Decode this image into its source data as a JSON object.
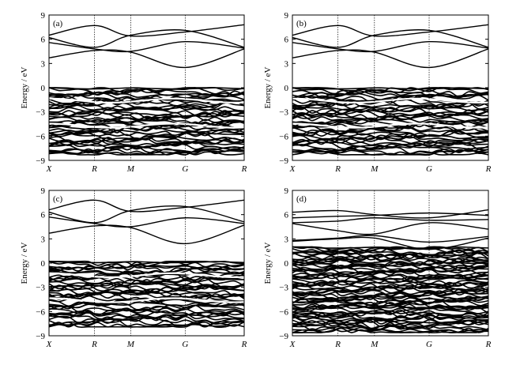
{
  "chart_data": [
    {
      "type": "line",
      "panel": "(a)",
      "ylabel": "Energy / eV",
      "ylim": [
        -9,
        9
      ],
      "yticks": [
        {
          "value": 9,
          "label": "9"
        },
        {
          "value": 6,
          "label": "6"
        },
        {
          "value": 3,
          "label": "3"
        },
        {
          "value": 0,
          "label": "0"
        },
        {
          "value": -3,
          "label": "−3"
        },
        {
          "value": -6,
          "label": "−6"
        },
        {
          "value": -9,
          "label": "−9"
        }
      ],
      "kpoints": [
        {
          "label": "X",
          "pos": 0
        },
        {
          "label": "R",
          "pos": 1
        },
        {
          "label": "M",
          "pos": 1.8
        },
        {
          "label": "G",
          "pos": 3
        },
        {
          "label": "R",
          "pos": 4.3
        }
      ],
      "conduction_bands": [
        [
          6.5,
          7.7,
          6.4,
          6.9,
          7.8
        ],
        [
          6.2,
          5.0,
          6.5,
          7.1,
          5.0
        ],
        [
          5.6,
          4.8,
          4.5,
          5.7,
          4.9
        ],
        [
          3.7,
          4.6,
          4.4,
          2.5,
          4.8
        ]
      ],
      "valence_band_max": 0,
      "valence_band_min": -8.3,
      "valence_gaps": [
        -1.6,
        -4.7
      ]
    },
    {
      "type": "line",
      "panel": "(b)",
      "ylabel": "Energy / eV",
      "ylim": [
        -9,
        9
      ],
      "yticks": [
        {
          "value": 9,
          "label": "9"
        },
        {
          "value": 6,
          "label": "6"
        },
        {
          "value": 3,
          "label": "3"
        },
        {
          "value": 0,
          "label": "0"
        },
        {
          "value": -3,
          "label": "−3"
        },
        {
          "value": -6,
          "label": "−6"
        },
        {
          "value": -9,
          "label": "−9"
        }
      ],
      "kpoints": [
        {
          "label": "X",
          "pos": 0
        },
        {
          "label": "R",
          "pos": 1
        },
        {
          "label": "M",
          "pos": 1.8
        },
        {
          "label": "G",
          "pos": 3
        },
        {
          "label": "R",
          "pos": 4.3
        }
      ],
      "conduction_bands": [
        [
          6.5,
          7.7,
          6.4,
          6.9,
          7.8
        ],
        [
          6.2,
          5.0,
          6.5,
          7.1,
          5.0
        ],
        [
          5.6,
          4.8,
          4.5,
          5.7,
          4.9
        ],
        [
          3.7,
          4.6,
          4.4,
          2.5,
          4.8
        ]
      ],
      "valence_band_max": 0,
      "valence_band_min": -8.3,
      "valence_gaps": [
        -1.6,
        -4.7
      ]
    },
    {
      "type": "line",
      "panel": "(c)",
      "ylabel": "Energy / eV",
      "ylim": [
        -9,
        9
      ],
      "yticks": [
        {
          "value": 9,
          "label": "9"
        },
        {
          "value": 6,
          "label": "6"
        },
        {
          "value": 3,
          "label": "3"
        },
        {
          "value": 0,
          "label": "0"
        },
        {
          "value": -3,
          "label": "−3"
        },
        {
          "value": -6,
          "label": "−6"
        },
        {
          "value": -9,
          "label": "−9"
        }
      ],
      "kpoints": [
        {
          "label": "X",
          "pos": 0
        },
        {
          "label": "R",
          "pos": 1
        },
        {
          "label": "M",
          "pos": 1.8
        },
        {
          "label": "G",
          "pos": 3
        },
        {
          "label": "R",
          "pos": 4.3
        }
      ],
      "conduction_bands": [
        [
          6.6,
          7.8,
          6.4,
          6.9,
          7.8
        ],
        [
          6.3,
          5.0,
          6.5,
          7.0,
          5.1
        ],
        [
          5.7,
          4.9,
          4.5,
          5.6,
          4.9
        ],
        [
          3.7,
          4.6,
          4.4,
          2.4,
          4.7
        ]
      ],
      "valence_band_max": 0.2,
      "valence_band_min": -7.9,
      "valence_gaps": [
        -1.5,
        -4.6
      ]
    },
    {
      "type": "line",
      "panel": "(d)",
      "ylabel": "Energy / eV",
      "ylim": [
        -9,
        9
      ],
      "yticks": [
        {
          "value": 9,
          "label": "9"
        },
        {
          "value": 6,
          "label": "6"
        },
        {
          "value": 3,
          "label": "3"
        },
        {
          "value": 0,
          "label": "0"
        },
        {
          "value": -3,
          "label": "−3"
        },
        {
          "value": -6,
          "label": "−6"
        },
        {
          "value": -9,
          "label": "−9"
        }
      ],
      "kpoints": [
        {
          "label": "X",
          "pos": 0
        },
        {
          "label": "R",
          "pos": 1
        },
        {
          "label": "M",
          "pos": 1.8
        },
        {
          "label": "G",
          "pos": 3
        },
        {
          "label": "R",
          "pos": 4.3
        }
      ],
      "conduction_bands": [
        [
          6.3,
          6.5,
          6.0,
          5.6,
          6.6
        ],
        [
          5.6,
          5.8,
          5.9,
          6.2,
          5.9
        ],
        [
          5.0,
          5.2,
          5.6,
          5.3,
          5.4
        ],
        [
          4.9,
          4.0,
          3.6,
          5.0,
          4.2
        ],
        [
          2.8,
          3.1,
          3.4,
          2.6,
          3.3
        ],
        [
          2.7,
          3.0,
          3.1,
          1.7,
          3.1
        ]
      ],
      "valence_band_max": 2.0,
      "valence_band_min": -8.6,
      "valence_gaps": []
    }
  ]
}
